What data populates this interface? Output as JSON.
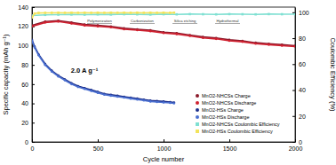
{
  "chart_data": {
    "type": "line",
    "x_label": "Cycle number",
    "y_label": "Specific capacity (mAh g⁻¹)",
    "y2_label": "Coulombic Efficiency (%)",
    "annotations": [
      "2.0 A g⁻¹",
      "Polymerization",
      "Carbonization",
      "Silica etching",
      "Hydrothermal"
    ],
    "xlim": [
      0,
      2000
    ],
    "xticks": [
      0,
      500,
      1000,
      1500,
      2000
    ],
    "ylim": [
      0,
      140
    ],
    "yticks": [
      0,
      20,
      40,
      60,
      80,
      100,
      120,
      140
    ],
    "y2lim": [
      0,
      104
    ],
    "y2ticks": [
      0,
      20,
      40,
      60,
      80,
      100
    ],
    "legend": "lower right",
    "series": [
      {
        "name": "MnO2-NHCSs Charge",
        "color": "#8b1a2b",
        "marker": "circle",
        "x": [
          0,
          100,
          200,
          300,
          400,
          500,
          600,
          700,
          800,
          900,
          1000,
          1100,
          1200,
          1300,
          1400,
          1500,
          1600,
          1700,
          1800,
          1900,
          2000
        ],
        "values": [
          121,
          125,
          126,
          124,
          122,
          121,
          120,
          118,
          117,
          116,
          114,
          113,
          111,
          109,
          108,
          106,
          105,
          103,
          102,
          101,
          100
        ]
      },
      {
        "name": "MnO2-NHCSs Discharge",
        "color": "#d0202f",
        "marker": "circle",
        "x": [
          0,
          100,
          200,
          300,
          400,
          500,
          600,
          700,
          800,
          900,
          1000,
          1100,
          1200,
          1300,
          1400,
          1500,
          1600,
          1700,
          1800,
          1900,
          2000
        ],
        "values": [
          120,
          124,
          125,
          123,
          121,
          120,
          119,
          117,
          116,
          115,
          113,
          112,
          110,
          108,
          107,
          105,
          104,
          102,
          101,
          100,
          99
        ]
      },
      {
        "name": "MnO2-HSs Charge",
        "color": "#1c2f8b",
        "marker": "circle",
        "x": [
          0,
          20,
          50,
          100,
          150,
          200,
          250,
          300,
          350,
          400,
          450,
          500,
          550,
          600,
          650,
          700,
          750,
          800,
          850,
          900,
          950,
          1000,
          1050,
          1080
        ],
        "values": [
          106,
          99,
          91,
          81,
          74,
          69,
          65,
          61,
          58,
          56,
          54,
          52,
          50,
          49,
          48,
          47,
          46,
          45,
          44,
          43,
          42.5,
          42,
          41.5,
          41
        ]
      },
      {
        "name": "MnO2-HSs Discharge",
        "color": "#4a6fd0",
        "marker": "circle",
        "x": [
          0,
          20,
          50,
          100,
          150,
          200,
          250,
          300,
          350,
          400,
          450,
          500,
          550,
          600,
          650,
          700,
          750,
          800,
          850,
          900,
          950,
          1000,
          1050,
          1080
        ],
        "values": [
          105,
          98,
          90,
          80,
          73,
          68,
          64,
          60,
          57,
          55,
          53,
          51,
          49,
          48,
          47,
          46,
          45,
          44,
          43,
          42,
          41.5,
          41,
          40.5,
          40
        ]
      },
      {
        "name": "MnO2-NHCSs Coulombic Efficiency",
        "color": "#7fe0d2",
        "marker": "square",
        "axis": "y2",
        "x": [
          0,
          100,
          200,
          300,
          400,
          500,
          600,
          700,
          800,
          900,
          1000,
          1100,
          1200,
          1300,
          1400,
          1500,
          1600,
          1700,
          1800,
          1900,
          2000
        ],
        "values": [
          97.5,
          98,
          98.2,
          98.3,
          98.2,
          98.4,
          98.3,
          98.5,
          98.4,
          98.3,
          98.5,
          98.4,
          98.6,
          98.5,
          98.4,
          98.6,
          98.5,
          98.4,
          98.6,
          98.5,
          98.5
        ]
      },
      {
        "name": "MnO2-HSs Coulombic Efficiency",
        "color": "#f2e35c",
        "marker": "square",
        "axis": "y2",
        "x": [
          0,
          20,
          50,
          100,
          150,
          200,
          250,
          300,
          350,
          400,
          450,
          500,
          550,
          600,
          650,
          700,
          750,
          800,
          850,
          900,
          950,
          1000,
          1050,
          1080
        ],
        "values": [
          96,
          99,
          99.5,
          99.6,
          99.6,
          99.7,
          99.6,
          99.7,
          99.6,
          99.7,
          99.6,
          99.7,
          99.6,
          99.7,
          99.6,
          99.7,
          99.6,
          99.7,
          99.6,
          99.7,
          99.6,
          99.7,
          99.6,
          99.7
        ]
      }
    ]
  }
}
